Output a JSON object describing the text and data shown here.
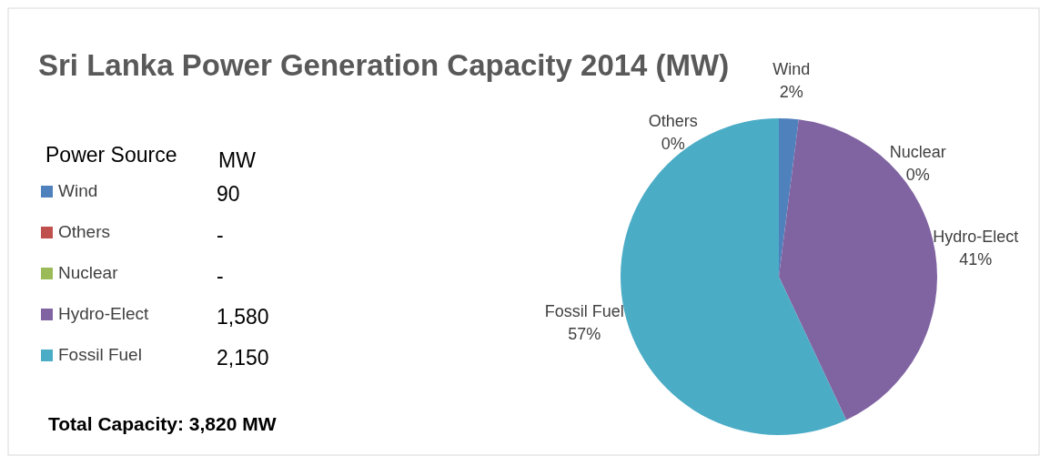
{
  "chart_data": {
    "type": "pie",
    "title": "Sri Lanka Power Generation Capacity 2014 (MW)",
    "categories": [
      "Wind",
      "Others",
      "Nuclear",
      "Hydro-Elect",
      "Fossil Fuel"
    ],
    "values": [
      2,
      0,
      0,
      41,
      57
    ],
    "colors": [
      "#4f81bd",
      "#c0504d",
      "#9bbb59",
      "#8064a2",
      "#4bacc6"
    ],
    "value_labels": [
      "2%",
      "0%",
      "0%",
      "41%",
      "57%"
    ],
    "legend": "left",
    "legend_title": "Power Source",
    "annotations": [
      "MW",
      "90",
      "-",
      "-",
      "1,580",
      "2,150",
      "Total Capacity:  3,820 MW"
    ]
  }
}
